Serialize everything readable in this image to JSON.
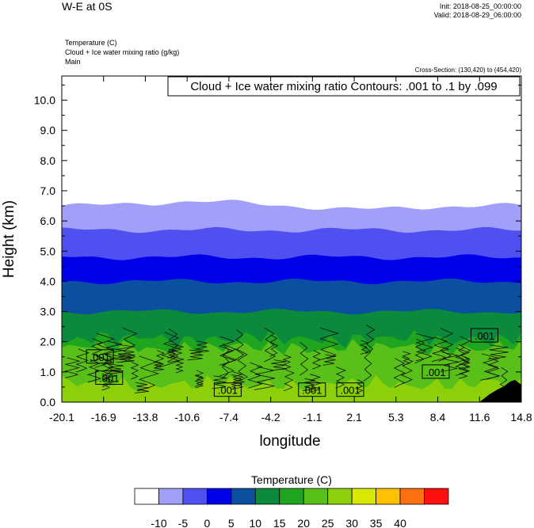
{
  "header": {
    "title": "W-E at 0S",
    "init": "Init: 2018-08-25_00:00:00",
    "valid": "Valid: 2018-08-29_06:00:00",
    "fields": [
      "Temperature   (C)",
      "Cloud + Ice water mixing ratio   (g/kg)",
      "Main"
    ],
    "cross_section": "Cross-Section: (130,420) to (454,420)"
  },
  "chart_data": {
    "type": "area",
    "title": "Cloud + Ice water mixing ratio Contours: .001 to .1 by .099",
    "xlabel": "longitude",
    "ylabel": "Height (km)",
    "xlim": [
      -20.1,
      14.8
    ],
    "ylim": [
      0,
      10.8
    ],
    "xticks": [
      "-20.1",
      "-16.9",
      "-13.8",
      "-10.6",
      "-7.4",
      "-4.2",
      "-1.1",
      "2.1",
      "5.3",
      "8.4",
      "11.6",
      "14.8"
    ],
    "yticks": [
      "0.0",
      "1.0",
      "2.0",
      "3.0",
      "4.0",
      "5.0",
      "6.0",
      "7.0",
      "8.0",
      "9.0",
      "10.0"
    ],
    "temperature_bands": [
      {
        "range": "-10 to -5",
        "color": "#a0a0f8",
        "top_km": 6.5
      },
      {
        "range": "-5 to 0",
        "color": "#5050f0",
        "top_km": 5.7
      },
      {
        "range": "0 to 5",
        "color": "#0000e8",
        "top_km": 4.8
      },
      {
        "range": "5 to 10",
        "color": "#0a4fa0",
        "top_km": 4.0
      },
      {
        "range": "10 to 15",
        "color": "#0a8a3a",
        "top_km": 3.0
      },
      {
        "range": "15 to 20",
        "color": "#1fa51f",
        "top_km": 2.1
      },
      {
        "range": "20 to 25",
        "color": "#58c018",
        "top_km": 1.8
      },
      {
        "range": "25 to 30",
        "color": "#8cd00a",
        "top_km": 0.6
      }
    ],
    "contour_labels": [
      {
        "text": ".001",
        "x": -17.2,
        "y": 1.5
      },
      {
        "text": ".001",
        "x": -16.5,
        "y": 0.8
      },
      {
        "text": ".001",
        "x": -7.5,
        "y": 0.4
      },
      {
        "text": ".001",
        "x": -1.1,
        "y": 0.4
      },
      {
        "text": ".001",
        "x": 1.8,
        "y": 0.4
      },
      {
        "text": ".001",
        "x": 8.3,
        "y": 1.0
      },
      {
        "text": ".001",
        "x": 12.0,
        "y": 2.2
      }
    ],
    "colorbar": {
      "title": "Temperature  (C)",
      "colors": [
        "#ffffff",
        "#a0a0f8",
        "#5050f0",
        "#0000e8",
        "#0a4fa0",
        "#0a8a3a",
        "#1fa51f",
        "#58c018",
        "#8cd00a",
        "#d8e800",
        "#ffc000",
        "#ff7010",
        "#ff1010"
      ],
      "labels": [
        "-10",
        "-5",
        "0",
        "5",
        "10",
        "15",
        "20",
        "25",
        "30",
        "35",
        "40"
      ]
    }
  }
}
